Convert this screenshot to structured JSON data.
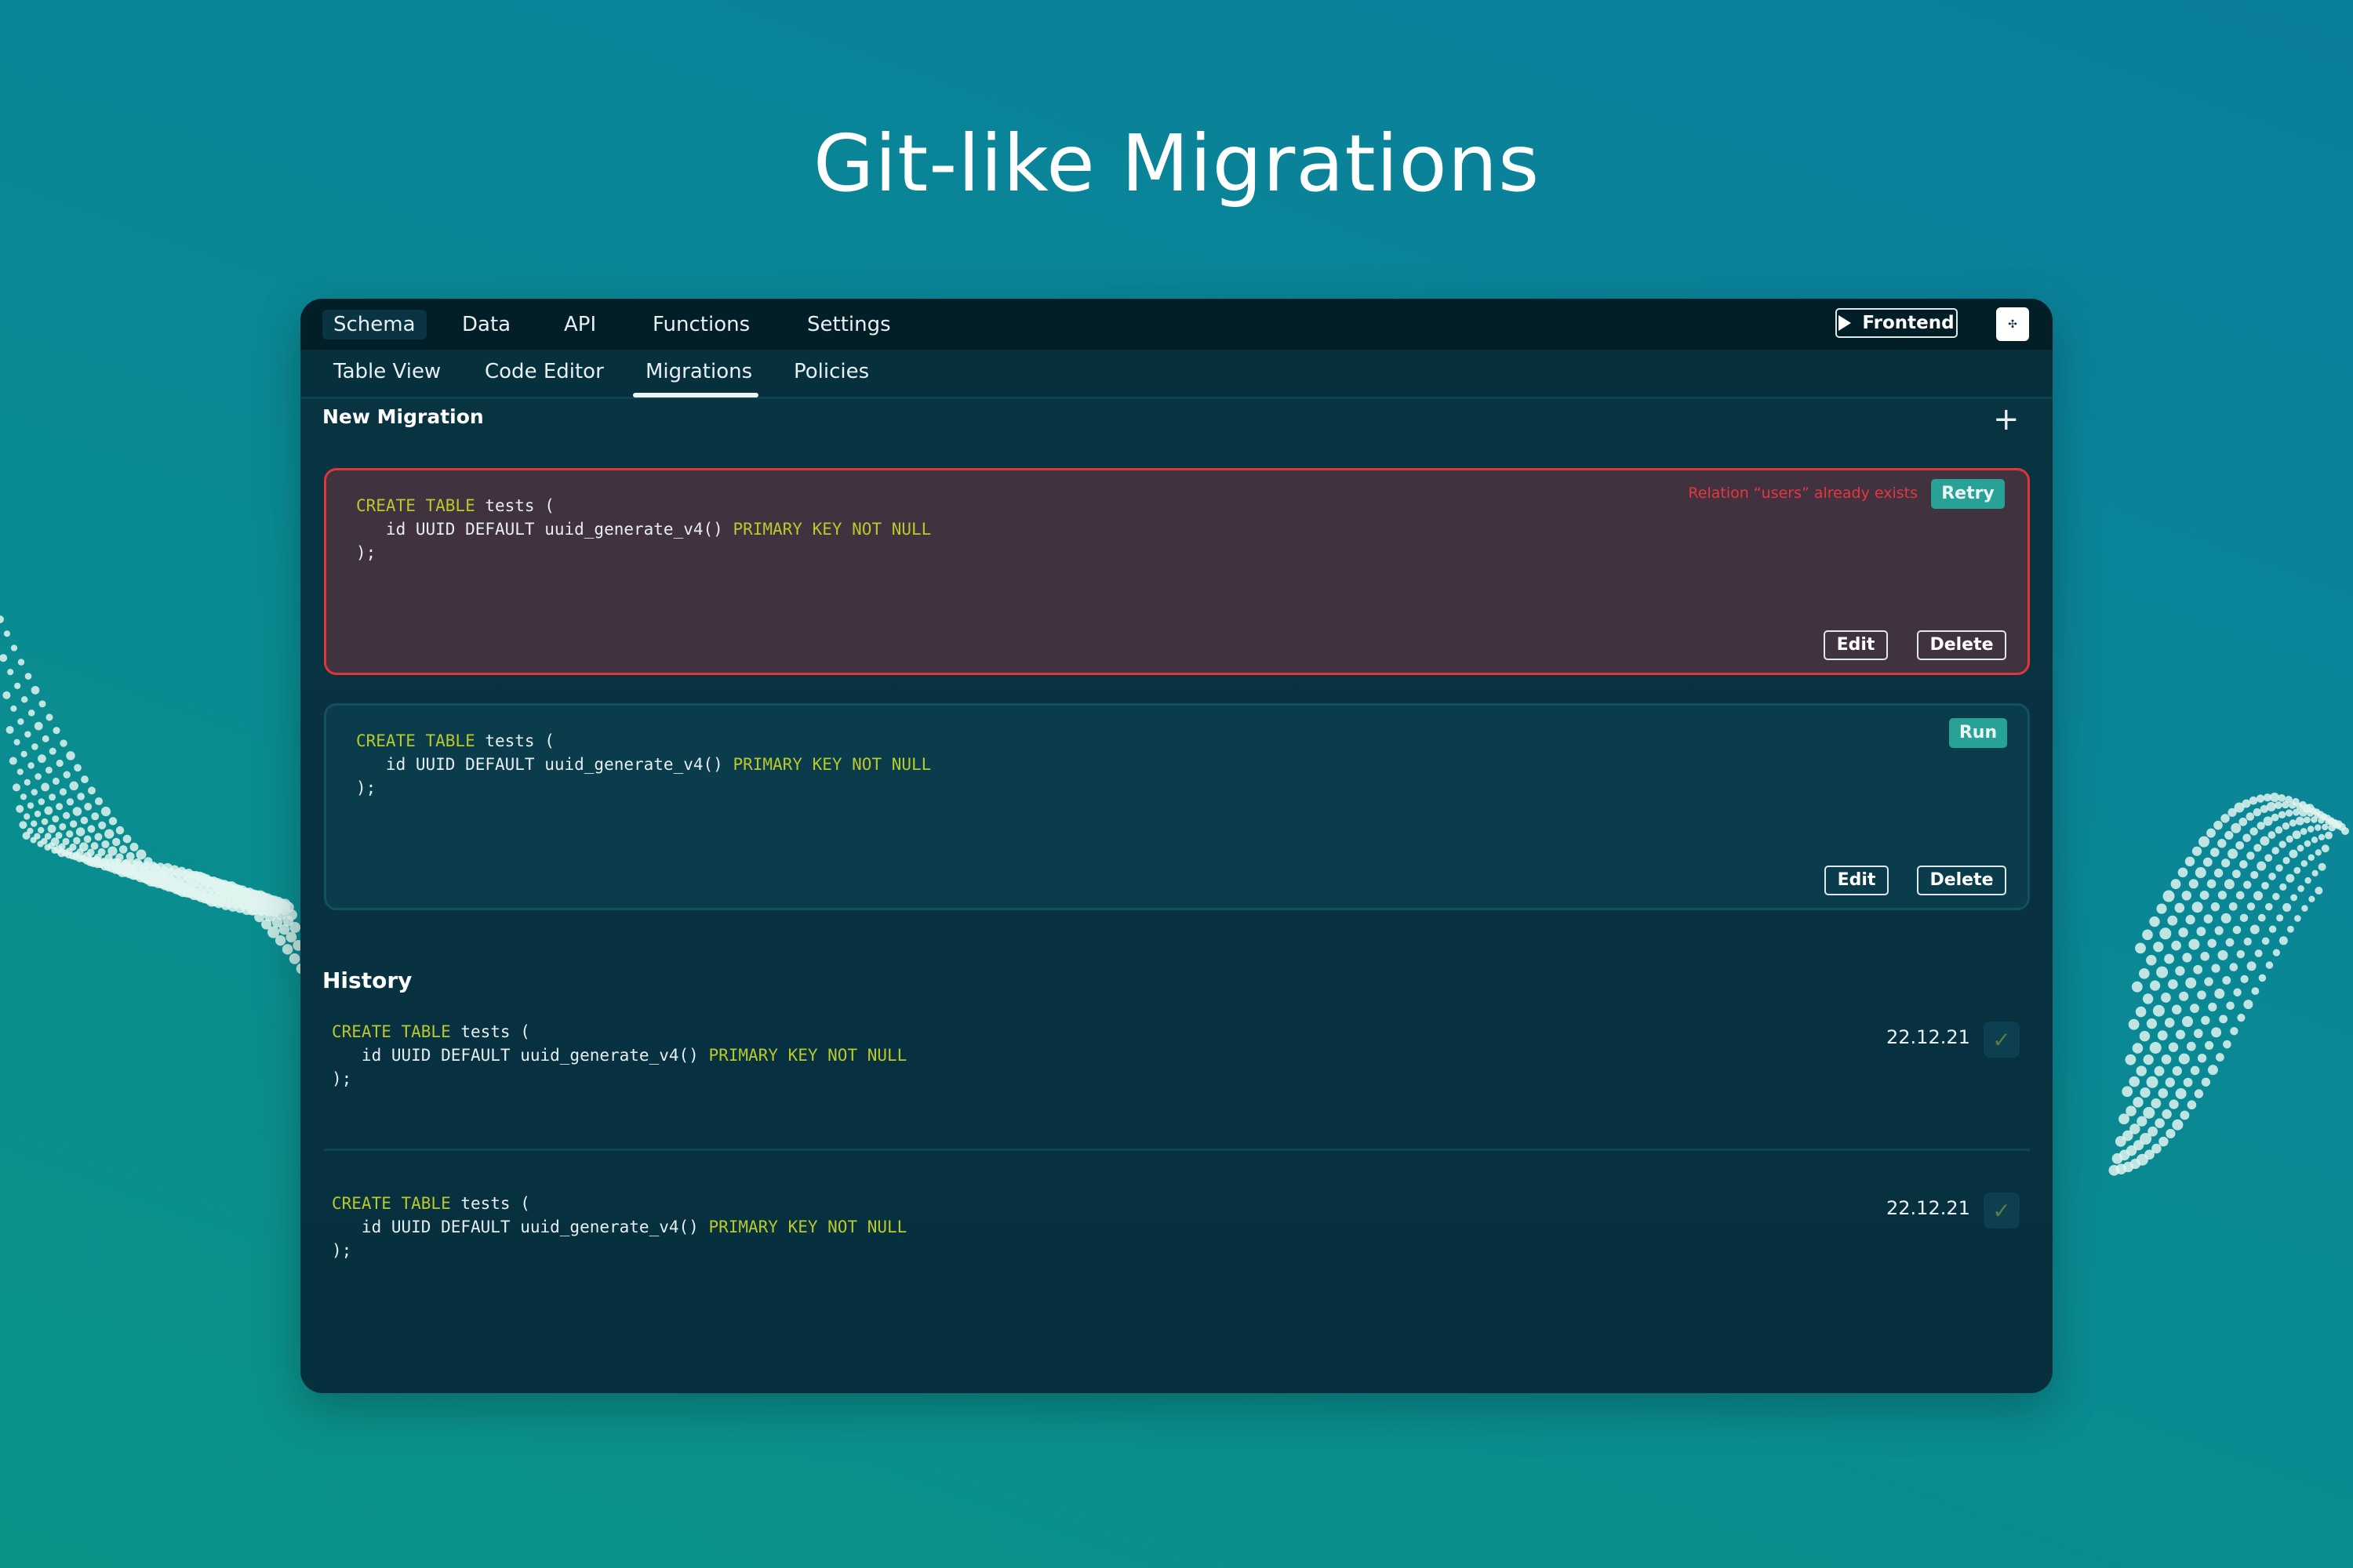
{
  "page_title": "Git-like Migrations",
  "colors": {
    "keyword": "#b9c92c",
    "error": "#e0353b",
    "accent": "#28a197"
  },
  "top_nav": {
    "items": [
      "Schema",
      "Data",
      "API",
      "Functions",
      "Settings"
    ],
    "active": "Schema",
    "frontend_button": {
      "label": "Frontend",
      "icon": "play-icon"
    },
    "logo_icon": "app-logo-icon"
  },
  "sub_nav": {
    "items": [
      "Table View",
      "Code Editor",
      "Migrations",
      "Policies"
    ],
    "active": "Migrations"
  },
  "new_migration": {
    "label": "New Migration",
    "add_icon": "plus-icon",
    "migrations": [
      {
        "status": "error",
        "error_message": "Relation “users” already exists",
        "action_label": "Retry",
        "edit_label": "Edit",
        "delete_label": "Delete",
        "code": [
          [
            {
              "t": "CREATE TABLE",
              "kw": true
            },
            {
              "t": " tests ("
            }
          ],
          [
            {
              "t": "   id UUID DEFAULT uuid_generate_v4() "
            },
            {
              "t": "PRIMARY KEY NOT NULL",
              "kw": true
            }
          ],
          [
            {
              "t": ");"
            }
          ]
        ]
      },
      {
        "status": "pending",
        "action_label": "Run",
        "edit_label": "Edit",
        "delete_label": "Delete",
        "code": [
          [
            {
              "t": "CREATE TABLE",
              "kw": true
            },
            {
              "t": " tests ("
            }
          ],
          [
            {
              "t": "   id UUID DEFAULT uuid_generate_v4() "
            },
            {
              "t": "PRIMARY KEY NOT NULL",
              "kw": true
            }
          ],
          [
            {
              "t": ");"
            }
          ]
        ]
      }
    ]
  },
  "history": {
    "label": "History",
    "items": [
      {
        "date": "22.12.21",
        "status_icon": "check-icon",
        "code": [
          [
            {
              "t": "CREATE TABLE",
              "kw": true
            },
            {
              "t": " tests ("
            }
          ],
          [
            {
              "t": "   id UUID DEFAULT uuid_generate_v4() "
            },
            {
              "t": "PRIMARY KEY NOT NULL",
              "kw": true
            }
          ],
          [
            {
              "t": ");"
            }
          ]
        ]
      },
      {
        "date": "22.12.21",
        "status_icon": "check-icon",
        "code": [
          [
            {
              "t": "CREATE TABLE",
              "kw": true
            },
            {
              "t": " tests ("
            }
          ],
          [
            {
              "t": "   id UUID DEFAULT uuid_generate_v4() "
            },
            {
              "t": "PRIMARY KEY NOT NULL",
              "kw": true
            }
          ],
          [
            {
              "t": ");"
            }
          ]
        ]
      }
    ]
  }
}
